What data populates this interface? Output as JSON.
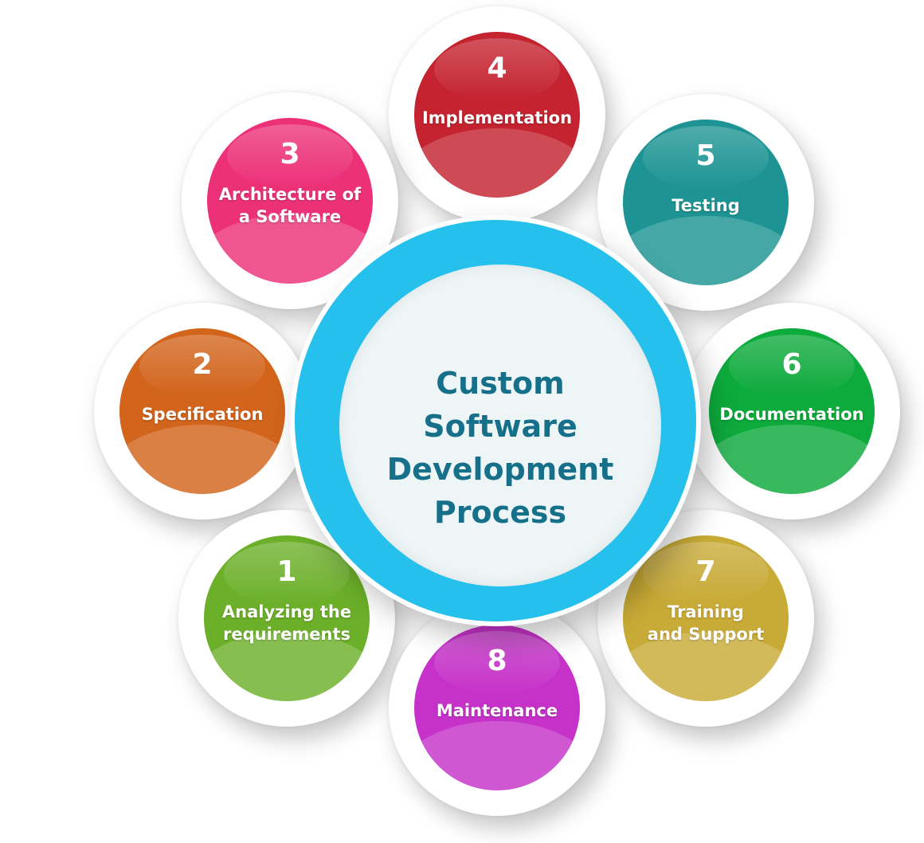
{
  "center": {
    "title_lines": [
      "Custom",
      "Software",
      "Development",
      "Process"
    ],
    "ring_color": "#25c1ec",
    "text_color": "#17708a"
  },
  "steps": [
    {
      "number": "1",
      "lines": [
        "Analyzing the",
        "requirements"
      ],
      "color": "#6cb02a"
    },
    {
      "number": "2",
      "lines": [
        "Specification"
      ],
      "color": "#d2641c"
    },
    {
      "number": "3",
      "lines": [
        "Architecture of",
        "a Software"
      ],
      "color": "#ec3179"
    },
    {
      "number": "4",
      "lines": [
        "Implementation"
      ],
      "color": "#c4232f"
    },
    {
      "number": "5",
      "lines": [
        "Testing"
      ],
      "color": "#1d9493"
    },
    {
      "number": "6",
      "lines": [
        "Documentation"
      ],
      "color": "#0daa3c"
    },
    {
      "number": "7",
      "lines": [
        "Training",
        "and Support"
      ],
      "color": "#c8aa36"
    },
    {
      "number": "8",
      "lines": [
        "Maintenance"
      ],
      "color": "#c632c9"
    }
  ]
}
